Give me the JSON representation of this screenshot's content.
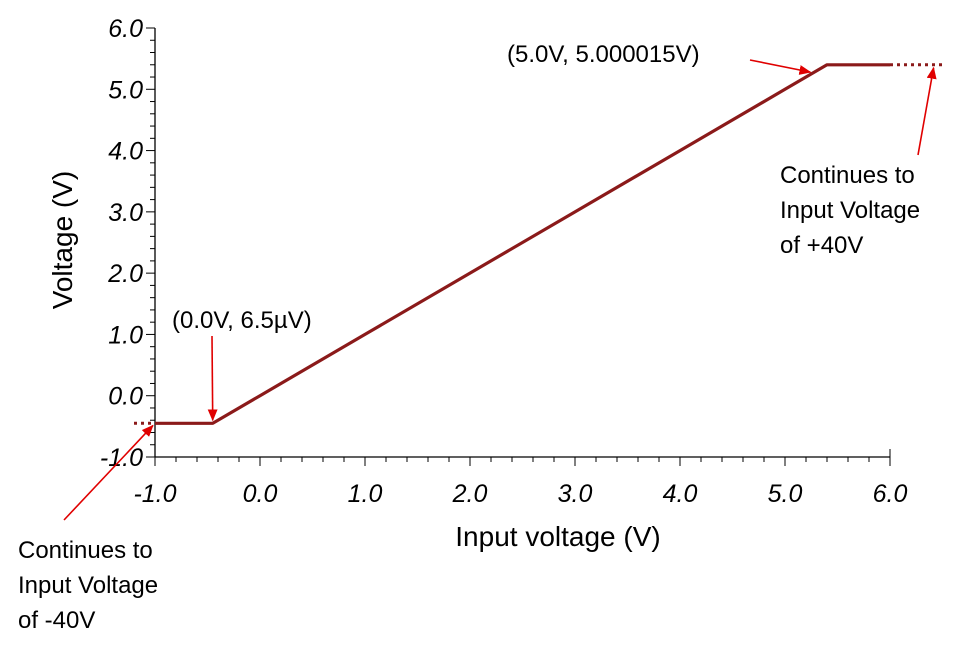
{
  "chart_data": {
    "type": "line",
    "title": "",
    "xlabel": "Input voltage (V)",
    "ylabel": "Voltage (V)",
    "xlim": [
      -1.0,
      6.0
    ],
    "ylim": [
      -1.0,
      6.0
    ],
    "x_ticks": [
      "-1.0",
      "0.0",
      "1.0",
      "2.0",
      "3.0",
      "4.0",
      "5.0",
      "6.0"
    ],
    "y_ticks": [
      "-1.0",
      "0.0",
      "1.0",
      "2.0",
      "3.0",
      "4.0",
      "5.0",
      "6.0"
    ],
    "grid": false,
    "series": [
      {
        "color": "#8b1a1a",
        "x": [
          -1.0,
          -0.45,
          0.0,
          1.0,
          2.0,
          3.0,
          4.0,
          5.0,
          5.4,
          6.0
        ],
        "y": [
          -0.45,
          -0.45,
          0.0,
          1.0,
          2.0,
          3.0,
          4.0,
          5.0,
          5.4,
          5.4
        ]
      }
    ],
    "extensions": [
      {
        "x": [
          -1.2,
          -1.0
        ],
        "y": [
          -0.45,
          -0.45
        ],
        "style": "dotted"
      },
      {
        "x": [
          6.0,
          6.5
        ],
        "y": [
          5.4,
          5.4
        ],
        "style": "dotted"
      }
    ],
    "annotations": [
      {
        "text": "(0.0V, 6.5µV)",
        "point": [
          -0.45,
          -0.45
        ]
      },
      {
        "text": "(5.0V, 5.000015V)",
        "point": [
          5.27,
          5.27
        ]
      },
      {
        "lines": [
          "Continues to",
          "Input Voltage",
          "of +40V"
        ],
        "point": [
          6.42,
          5.4
        ]
      },
      {
        "lines": [
          "Continues to",
          "Input Voltage",
          "of -40V"
        ],
        "point": [
          -1.0,
          -0.45
        ]
      }
    ],
    "annotation_color": "#e00000"
  }
}
